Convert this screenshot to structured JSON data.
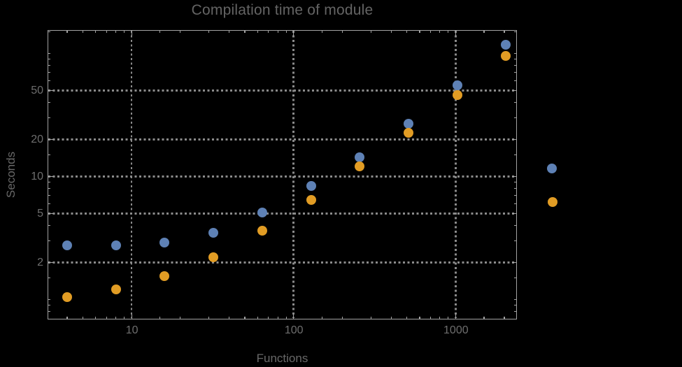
{
  "chart_data": {
    "type": "scatter",
    "title": "Compilation time of module",
    "xlabel": "Functions",
    "ylabel": "Seconds",
    "x_scale": "log",
    "y_scale": "log",
    "grid": "dotted",
    "legend_position": "right-of-frame",
    "x": [
      4,
      8,
      16,
      32,
      64,
      128,
      256,
      512,
      1024,
      2048
    ],
    "series": [
      {
        "name": "series-1-blue",
        "color": "#5E81B5",
        "values": [
          2.75,
          2.75,
          2.9,
          3.5,
          5.1,
          8.4,
          14.4,
          27,
          55,
          117
        ]
      },
      {
        "name": "series-2-orange",
        "color": "#E19C24",
        "values": [
          1.04,
          1.2,
          1.55,
          2.2,
          3.6,
          6.4,
          12,
          22.5,
          46,
          96
        ]
      }
    ],
    "x_range": [
      3.06,
      2344
    ],
    "y_range": [
      0.705,
      153
    ],
    "x_ticks_major": [
      {
        "v": 10,
        "label": "10"
      },
      {
        "v": 100,
        "label": "100"
      },
      {
        "v": 1000,
        "label": "1000"
      }
    ],
    "x_ticks_minor": [
      4,
      5,
      6,
      7,
      8,
      9,
      15,
      20,
      30,
      40,
      50,
      60,
      70,
      80,
      90,
      150,
      200,
      300,
      400,
      500,
      600,
      700,
      800,
      900,
      1500,
      2000
    ],
    "y_ticks_major": [
      {
        "v": 2,
        "label": "2"
      },
      {
        "v": 5,
        "label": "5"
      },
      {
        "v": 10,
        "label": "10"
      },
      {
        "v": 20,
        "label": "20"
      },
      {
        "v": 50,
        "label": "50"
      }
    ],
    "y_ticks_minor": [
      0.8,
      0.9,
      1,
      1.5,
      3,
      4,
      6,
      7,
      8,
      9,
      15,
      30,
      40,
      60,
      70,
      80,
      90,
      100,
      150
    ],
    "x_gridlines": [
      10,
      100,
      1000
    ],
    "y_gridlines": [
      2,
      5,
      10,
      20,
      50
    ],
    "colors": {
      "background": "#000000",
      "frame": "#A3A3A3",
      "gridline": "#8A8A8A",
      "tick_label": "#6E6E6E",
      "title": "#646464",
      "axis_label": "#686868"
    },
    "legend_markers": [
      {
        "series": "series-1-blue",
        "color": "#5E81B5"
      },
      {
        "series": "series-2-orange",
        "color": "#E19C24"
      }
    ]
  }
}
